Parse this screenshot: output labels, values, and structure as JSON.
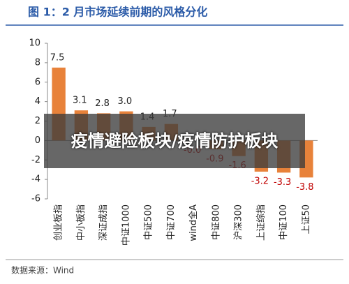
{
  "chart_data": {
    "type": "bar",
    "title": "图 1：2 月市场延续前期的风格分化",
    "source": "数据来源：Wind",
    "overlay_text": "疫情避险板块/疫情防护板块",
    "categories": [
      "创业板指",
      "中小板指",
      "深证成指",
      "中证1000",
      "中证500",
      "中证700",
      "wind全A",
      "中证800",
      "沪深300",
      "上证综指",
      "中证100",
      "上证50"
    ],
    "values": [
      7.5,
      3.1,
      2.8,
      3.0,
      1.4,
      1.7,
      -0.0,
      -0.9,
      -1.6,
      -3.2,
      -3.3,
      -3.8
    ],
    "value_labels": [
      "7.5",
      "3.1",
      "2.8",
      "3.0",
      "1.4",
      "1.7",
      "-0.0",
      "-0.9",
      "-1.6",
      "-3.2",
      "-3.3",
      "-3.8"
    ],
    "color": "#e8823a",
    "negative_label_color": "#c00000",
    "ylim": [
      -6,
      10
    ],
    "yticks": [
      -6,
      -4,
      -2,
      0,
      2,
      4,
      6,
      8,
      10
    ],
    "grid": false
  }
}
